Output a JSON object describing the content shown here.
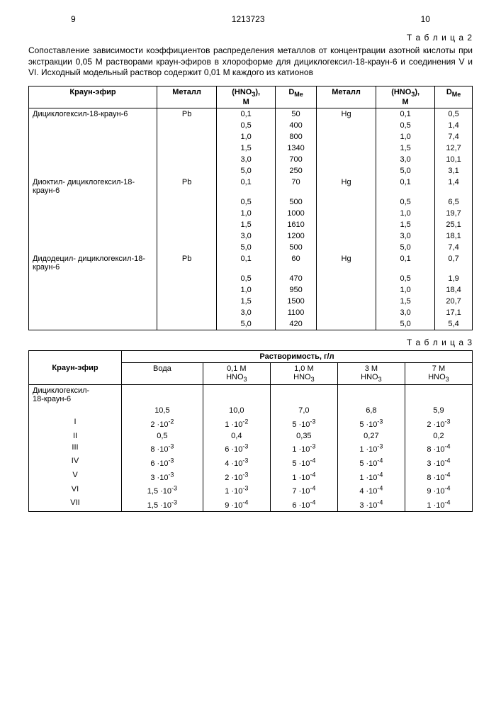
{
  "page_left": "9",
  "doc_number": "1213723",
  "page_right": "10",
  "table2_label": "Т а б л и ц а 2",
  "table2_caption": "Сопоставление зависимости коэффициентов распределения металлов от концентрации азотной кислоты при экстракции 0,05 М растворами краун-эфиров в хлороформе для дициклогексил-18-краун-6 и соединения V и VI. Исходный модельный раствор содержит 0,01 М каждого из катионов",
  "t2_headers": {
    "c1": "Краун-эфир",
    "c2": "Металл",
    "c3a": "(HNO",
    "c3b": "3",
    "c3c": "),",
    "c3d": "М",
    "c4a": "D",
    "c4b": "Me",
    "c5": "Металл",
    "c6a": "(HNO",
    "c6b": "3",
    "c6c": "),",
    "c6d": "М",
    "c7a": "D",
    "c7b": "Me"
  },
  "t2_groups": [
    {
      "name": "Дициклогексил-18-краун-6",
      "metal1": "Pb",
      "metal2": "Hg",
      "rows": [
        [
          "0,1",
          "50",
          "0,1",
          "0,5"
        ],
        [
          "0,5",
          "400",
          "0,5",
          "1,4"
        ],
        [
          "1,0",
          "800",
          "1,0",
          "7,4"
        ],
        [
          "1,5",
          "1340",
          "1,5",
          "12,7"
        ],
        [
          "3,0",
          "700",
          "3,0",
          "10,1"
        ],
        [
          "5,0",
          "250",
          "5,0",
          "3,1"
        ]
      ]
    },
    {
      "name": "Диоктил- дициклогексил-18-краун-6",
      "metal1": "Pb",
      "metal2": "Hg",
      "rows": [
        [
          "0,1",
          "70",
          "0,1",
          "1,4"
        ],
        [
          "0,5",
          "500",
          "0,5",
          "6,5"
        ],
        [
          "1,0",
          "1000",
          "1,0",
          "19,7"
        ],
        [
          "1,5",
          "1610",
          "1,5",
          "25,1"
        ],
        [
          "3,0",
          "1200",
          "3,0",
          "18,1"
        ],
        [
          "5,0",
          "500",
          "5,0",
          "7,4"
        ]
      ]
    },
    {
      "name": "Дидодецил- дициклогексил-18-краун-6",
      "metal1": "Pb",
      "metal2": "Hg",
      "rows": [
        [
          "0,1",
          "60",
          "0,1",
          "0,7"
        ],
        [
          "0,5",
          "470",
          "0,5",
          "1,9"
        ],
        [
          "1,0",
          "950",
          "1,0",
          "18,4"
        ],
        [
          "1,5",
          "1500",
          "1,5",
          "20,7"
        ],
        [
          "3,0",
          "1100",
          "3,0",
          "17,1"
        ],
        [
          "5,0",
          "420",
          "5,0",
          "5,4"
        ]
      ]
    }
  ],
  "table3_label": "Т а б л и ц а 3",
  "t3_headers": {
    "c1": "Краун-эфир",
    "c2": "Растворимость, г/л",
    "s1": "Вода",
    "s2a": "0,1 М",
    "s2b": "HNO",
    "s3a": "1,0 М",
    "s3b": "HNO",
    "s4a": "3 М",
    "s4b": "HNO",
    "s5a": "7 М",
    "s5b": "HNO",
    "sub3": "3"
  },
  "t3_first_name": "Дициклогексил-18-краун-6",
  "t3_rows": [
    {
      "label": "",
      "vals": [
        "10,5",
        "10,0",
        "7,0",
        "6,8",
        "5,9"
      ]
    },
    {
      "label": "I",
      "vals": [
        {
          "m": "2",
          "e": "-2"
        },
        {
          "m": "1",
          "e": "-2"
        },
        {
          "m": "5",
          "e": "-3"
        },
        {
          "m": "5",
          "e": "-3"
        },
        {
          "m": "2",
          "e": "-3"
        }
      ]
    },
    {
      "label": "II",
      "vals": [
        "0,5",
        "0,4",
        "0,35",
        "0,27",
        "0,2"
      ]
    },
    {
      "label": "III",
      "vals": [
        {
          "m": "8",
          "e": "-3"
        },
        {
          "m": "6",
          "e": "-3"
        },
        {
          "m": "1",
          "e": "-3"
        },
        {
          "m": "1",
          "e": "-3"
        },
        {
          "m": "8",
          "e": "-4"
        }
      ]
    },
    {
      "label": "IV",
      "vals": [
        {
          "m": "6",
          "e": "-3"
        },
        {
          "m": "4",
          "e": "-3"
        },
        {
          "m": "5",
          "e": "-4"
        },
        {
          "m": "5",
          "e": "-4"
        },
        {
          "m": "3",
          "e": "-4"
        }
      ]
    },
    {
      "label": "V",
      "vals": [
        {
          "m": "3",
          "e": "-3"
        },
        {
          "m": "2",
          "e": "-3"
        },
        {
          "m": "1",
          "e": "-4"
        },
        {
          "m": "1",
          "e": "-4"
        },
        {
          "m": "8",
          "e": "-4"
        }
      ]
    },
    {
      "label": "VI",
      "vals": [
        {
          "m": "1,5",
          "e": "-3"
        },
        {
          "m": "1",
          "e": "-3"
        },
        {
          "m": "7",
          "e": "-4"
        },
        {
          "m": "4",
          "e": "-4"
        },
        {
          "m": "9",
          "e": "-4"
        }
      ]
    },
    {
      "label": "VII",
      "vals": [
        {
          "m": "1,5",
          "e": "-3"
        },
        {
          "m": "9",
          "e": "-4"
        },
        {
          "m": "6",
          "e": "-4"
        },
        {
          "m": "3",
          "e": "-4"
        },
        {
          "m": "1",
          "e": "-4"
        }
      ]
    }
  ]
}
